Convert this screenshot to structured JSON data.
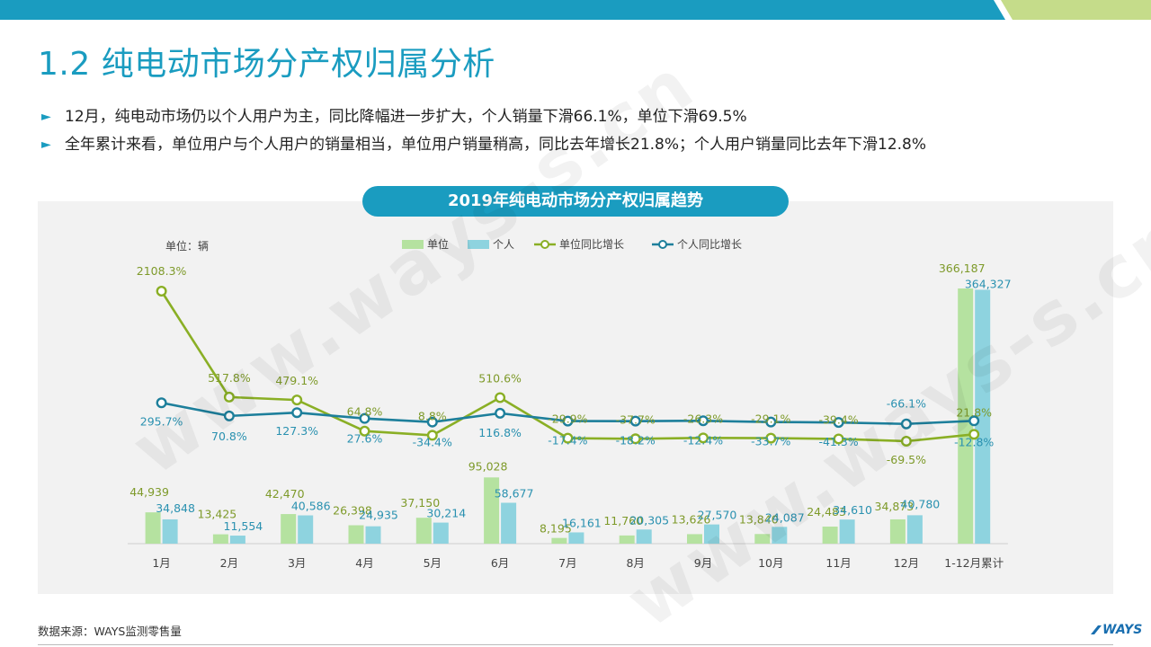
{
  "title": "1.2 纯电动市场分产权归属分析",
  "bullets": [
    "12月，纯电动市场仍以个人用户为主，同比降幅进一步扩大，个人销量下滑66.1%，单位下滑69.5%",
    "全年累计来看，单位用户与个人用户的销量相当，单位用户销量稍高，同比去年增长21.8%；个人用户销量同比去年下滑12.8%"
  ],
  "watermark": "www.ways-s.cn",
  "source": "数据来源：WAYS监测零售量",
  "logo_text": "WAYS",
  "colors": {
    "accent": "#1a9cc0",
    "unit_bar": "#b5e2a0",
    "person_bar": "#8ed3df",
    "unit_line": "#8aaf25",
    "person_line": "#1d7f9b",
    "label_unit": "#7e9a2a",
    "label_person": "#2a91b0"
  },
  "chart_data": {
    "type": "bar",
    "title": "2019年纯电动市场分产权归属趋势",
    "unit_label": "单位：辆",
    "categories": [
      "1月",
      "2月",
      "3月",
      "4月",
      "5月",
      "6月",
      "7月",
      "8月",
      "9月",
      "10月",
      "11月",
      "12月",
      "1-12月累计"
    ],
    "series": [
      {
        "name": "单位",
        "type": "bar",
        "values": [
          44939,
          13425,
          42470,
          26398,
          37150,
          95028,
          8195,
          11760,
          13626,
          13840,
          24483,
          34873,
          366187
        ],
        "labels": [
          "44,939",
          "13,425",
          "42,470",
          "26,398",
          "37,150",
          "95,028",
          "8,195",
          "11,760",
          "13,626",
          "13,840",
          "24,483",
          "34,873",
          "366,187"
        ]
      },
      {
        "name": "个人",
        "type": "bar",
        "values": [
          34848,
          11554,
          40586,
          24935,
          30214,
          58677,
          16161,
          20305,
          27570,
          24087,
          34610,
          40780,
          364327
        ],
        "labels": [
          "34,848",
          "11,554",
          "40,586",
          "24,935",
          "30,214",
          "58,677",
          "16,161",
          "20,305",
          "27,570",
          "24,087",
          "34,610",
          "40,780",
          "364,327"
        ]
      },
      {
        "name": "单位同比增长",
        "type": "line",
        "values": [
          2108.3,
          517.8,
          479.1,
          64.8,
          8.8,
          510.6,
          -29.9,
          -37.7,
          -26.3,
          -29.1,
          -39.4,
          -69.5,
          21.8
        ],
        "labels": [
          "2108.3%",
          "517.8%",
          "479.1%",
          "64.8%",
          "8.8%",
          "510.6%",
          "-29.9%",
          "-37.7%",
          "-26.3%",
          "-29.1%",
          "-39.4%",
          "-69.5%",
          "21.8%"
        ]
      },
      {
        "name": "个人同比增长",
        "type": "line",
        "values": [
          295.7,
          70.8,
          127.3,
          27.6,
          -34.4,
          116.8,
          -17.4,
          -18.2,
          -12.4,
          -33.7,
          -41.3,
          -66.1,
          -12.8
        ],
        "labels": [
          "295.7%",
          "70.8%",
          "127.3%",
          "27.6%",
          "-34.4%",
          "116.8%",
          "-17.4%",
          "-18.2%",
          "-12.4%",
          "-33.7%",
          "-41.3%",
          "-66.1%",
          "-12.8%"
        ]
      }
    ],
    "legend_position": "top"
  }
}
